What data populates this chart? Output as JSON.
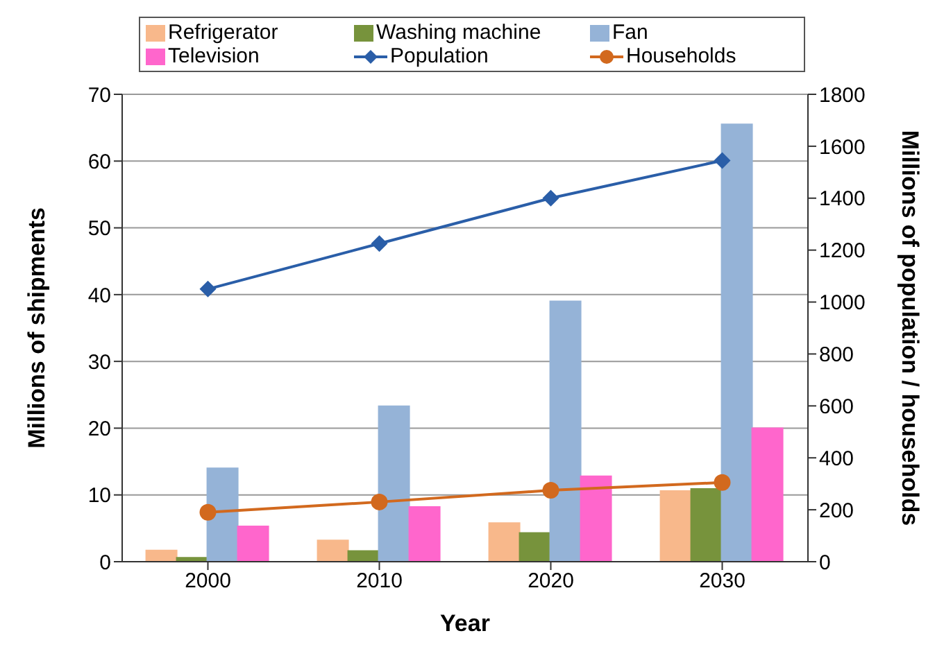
{
  "chart_data": {
    "type": "bar",
    "xlabel": "Year",
    "ylabel": "Millions of shipments",
    "y2label": "Millions of population / households",
    "categories": [
      "2000",
      "2010",
      "2020",
      "2030"
    ],
    "series": [
      {
        "name": "Refrigerator",
        "color": "#f8b88b",
        "values": [
          1.7,
          3.2,
          5.8,
          10.6
        ]
      },
      {
        "name": "Washing machine",
        "color": "#77933c",
        "values": [
          0.6,
          1.6,
          4.3,
          10.9
        ]
      },
      {
        "name": "Fan",
        "color": "#95b3d7",
        "values": [
          14,
          23.3,
          39,
          65.5
        ]
      },
      {
        "name": "Television",
        "color": "#ff66cc",
        "values": [
          5.3,
          8.2,
          12.8,
          20
        ]
      },
      {
        "name": "Population",
        "type": "line",
        "axis": "y2",
        "marker": "diamond",
        "color": "#2a5ea8",
        "values": [
          1050,
          1225,
          1400,
          1545
        ]
      },
      {
        "name": "Households",
        "type": "line",
        "axis": "y2",
        "marker": "circle",
        "color": "#d2691e",
        "values": [
          190,
          230,
          275,
          305
        ]
      }
    ],
    "ylim": [
      0,
      70
    ],
    "yticks": [
      0,
      10,
      20,
      30,
      40,
      50,
      60,
      70
    ],
    "y2lim": [
      0,
      1800
    ],
    "y2ticks": [
      0,
      200,
      400,
      600,
      800,
      1000,
      1200,
      1400,
      1600,
      1800
    ],
    "grid": "y",
    "legend": "top"
  }
}
